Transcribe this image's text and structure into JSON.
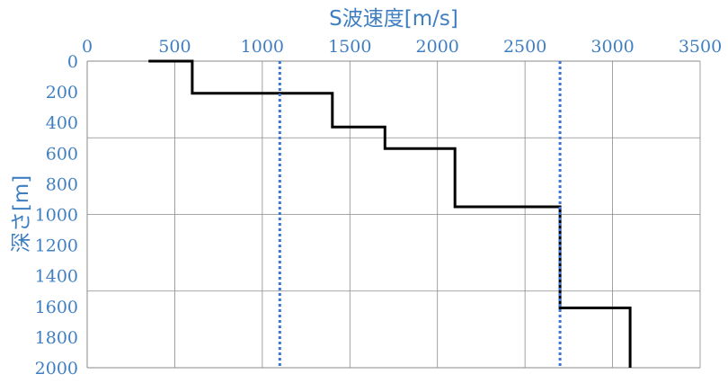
{
  "chart_data": {
    "type": "line",
    "title": "S波速度[m/s]",
    "xlabel": "S波速度[m/s]",
    "ylabel": "深さ[m]",
    "xlim": [
      0,
      3500
    ],
    "ylim": [
      0,
      2000
    ],
    "y_inverted": true,
    "x_axis_position": "top",
    "x_ticks": [
      0,
      500,
      1000,
      1500,
      2000,
      2500,
      3000,
      3500
    ],
    "y_ticks": [
      0,
      200,
      400,
      600,
      800,
      1000,
      1200,
      1400,
      1600,
      1800,
      2000
    ],
    "grid": "vertical lines every 500 m/s, horizontal lines every 500 m",
    "series": [
      {
        "color": "#000000",
        "style": "solid",
        "x": [
          350,
          600,
          600,
          1400,
          1400,
          1700,
          1700,
          2100,
          2100,
          2700,
          2700,
          3100,
          3100
        ],
        "y": [
          0,
          0,
          210,
          210,
          430,
          430,
          570,
          570,
          950,
          950,
          1610,
          1610,
          2000
        ]
      },
      {
        "color": "#3a74d6",
        "style": "dotted",
        "x": [
          1100,
          1100
        ],
        "y": [
          0,
          2000
        ]
      },
      {
        "color": "#3a74d6",
        "style": "dotted",
        "x": [
          2700,
          2700
        ],
        "y": [
          0,
          2000
        ]
      }
    ]
  }
}
